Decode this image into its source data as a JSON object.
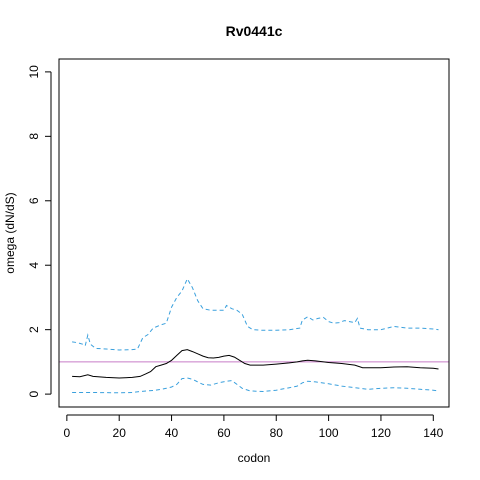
{
  "chart_data": {
    "type": "line",
    "title": "Rv0441c",
    "xlabel": "codon",
    "ylabel": "omega (dN/dS)",
    "xlim": [
      -3,
      146
    ],
    "ylim": [
      -0.4,
      10.4
    ],
    "xticks": [
      0,
      20,
      40,
      60,
      80,
      100,
      120,
      140
    ],
    "yticks": [
      0,
      2,
      4,
      6,
      8,
      10
    ],
    "grid": false,
    "reference_line": {
      "y": 1,
      "color": "#c77cc7"
    },
    "series": [
      {
        "role": "upper-bound",
        "style": "dashed",
        "color": "#3aa0dd",
        "points": [
          [
            2,
            1.62
          ],
          [
            4,
            1.6
          ],
          [
            6,
            1.55
          ],
          [
            7,
            1.5
          ],
          [
            8,
            1.83
          ],
          [
            9,
            1.55
          ],
          [
            11,
            1.42
          ],
          [
            15,
            1.4
          ],
          [
            20,
            1.37
          ],
          [
            25,
            1.38
          ],
          [
            27,
            1.4
          ],
          [
            29,
            1.75
          ],
          [
            31,
            1.85
          ],
          [
            33,
            2.05
          ],
          [
            36,
            2.15
          ],
          [
            38,
            2.2
          ],
          [
            40,
            2.7
          ],
          [
            42,
            3.0
          ],
          [
            44,
            3.2
          ],
          [
            46,
            3.58
          ],
          [
            48,
            3.3
          ],
          [
            50,
            2.9
          ],
          [
            52,
            2.65
          ],
          [
            55,
            2.6
          ],
          [
            58,
            2.6
          ],
          [
            60,
            2.6
          ],
          [
            61,
            2.75
          ],
          [
            63,
            2.65
          ],
          [
            65,
            2.6
          ],
          [
            67,
            2.48
          ],
          [
            69,
            2.1
          ],
          [
            71,
            2.0
          ],
          [
            75,
            1.98
          ],
          [
            80,
            1.98
          ],
          [
            85,
            2.0
          ],
          [
            89,
            2.05
          ],
          [
            90,
            2.3
          ],
          [
            92,
            2.4
          ],
          [
            94,
            2.3
          ],
          [
            96,
            2.35
          ],
          [
            98,
            2.38
          ],
          [
            100,
            2.25
          ],
          [
            102,
            2.2
          ],
          [
            104,
            2.22
          ],
          [
            106,
            2.28
          ],
          [
            108,
            2.25
          ],
          [
            110,
            2.22
          ],
          [
            111,
            2.35
          ],
          [
            112,
            2.05
          ],
          [
            115,
            2.0
          ],
          [
            120,
            2.0
          ],
          [
            125,
            2.1
          ],
          [
            130,
            2.05
          ],
          [
            135,
            2.05
          ],
          [
            140,
            2.02
          ],
          [
            142,
            2.0
          ]
        ]
      },
      {
        "role": "estimate",
        "style": "solid",
        "color": "#000000",
        "points": [
          [
            2,
            0.55
          ],
          [
            5,
            0.54
          ],
          [
            8,
            0.6
          ],
          [
            10,
            0.55
          ],
          [
            15,
            0.52
          ],
          [
            20,
            0.5
          ],
          [
            25,
            0.52
          ],
          [
            28,
            0.55
          ],
          [
            30,
            0.62
          ],
          [
            32,
            0.7
          ],
          [
            34,
            0.85
          ],
          [
            36,
            0.9
          ],
          [
            38,
            0.95
          ],
          [
            40,
            1.05
          ],
          [
            42,
            1.2
          ],
          [
            44,
            1.35
          ],
          [
            46,
            1.38
          ],
          [
            48,
            1.32
          ],
          [
            50,
            1.25
          ],
          [
            52,
            1.18
          ],
          [
            54,
            1.13
          ],
          [
            56,
            1.12
          ],
          [
            58,
            1.14
          ],
          [
            60,
            1.18
          ],
          [
            62,
            1.2
          ],
          [
            64,
            1.15
          ],
          [
            66,
            1.05
          ],
          [
            68,
            0.95
          ],
          [
            70,
            0.9
          ],
          [
            75,
            0.9
          ],
          [
            80,
            0.93
          ],
          [
            85,
            0.97
          ],
          [
            88,
            1.0
          ],
          [
            90,
            1.03
          ],
          [
            92,
            1.05
          ],
          [
            95,
            1.03
          ],
          [
            100,
            0.98
          ],
          [
            105,
            0.95
          ],
          [
            110,
            0.9
          ],
          [
            113,
            0.82
          ],
          [
            120,
            0.82
          ],
          [
            125,
            0.84
          ],
          [
            130,
            0.85
          ],
          [
            135,
            0.82
          ],
          [
            140,
            0.8
          ],
          [
            142,
            0.78
          ]
        ]
      },
      {
        "role": "lower-bound",
        "style": "dashed",
        "color": "#3aa0dd",
        "points": [
          [
            2,
            0.05
          ],
          [
            10,
            0.05
          ],
          [
            20,
            0.04
          ],
          [
            25,
            0.05
          ],
          [
            28,
            0.08
          ],
          [
            31,
            0.1
          ],
          [
            34,
            0.12
          ],
          [
            36,
            0.15
          ],
          [
            38,
            0.18
          ],
          [
            40,
            0.22
          ],
          [
            42,
            0.3
          ],
          [
            44,
            0.48
          ],
          [
            46,
            0.5
          ],
          [
            48,
            0.46
          ],
          [
            50,
            0.38
          ],
          [
            52,
            0.3
          ],
          [
            55,
            0.28
          ],
          [
            58,
            0.35
          ],
          [
            61,
            0.4
          ],
          [
            63,
            0.42
          ],
          [
            65,
            0.3
          ],
          [
            67,
            0.18
          ],
          [
            70,
            0.1
          ],
          [
            75,
            0.08
          ],
          [
            80,
            0.12
          ],
          [
            85,
            0.2
          ],
          [
            88,
            0.25
          ],
          [
            90,
            0.35
          ],
          [
            92,
            0.4
          ],
          [
            95,
            0.38
          ],
          [
            100,
            0.32
          ],
          [
            105,
            0.25
          ],
          [
            110,
            0.2
          ],
          [
            115,
            0.15
          ],
          [
            120,
            0.18
          ],
          [
            125,
            0.2
          ],
          [
            130,
            0.18
          ],
          [
            135,
            0.15
          ],
          [
            140,
            0.12
          ],
          [
            142,
            0.1
          ]
        ]
      }
    ]
  }
}
